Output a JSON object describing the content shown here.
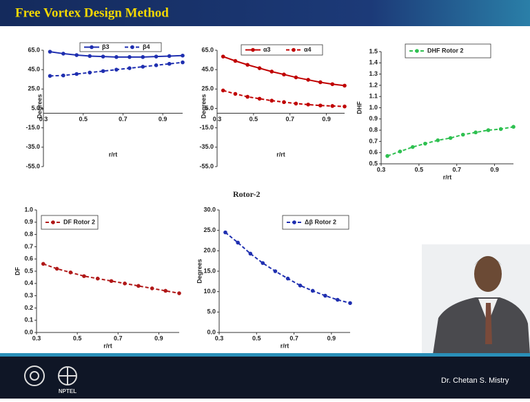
{
  "slide": {
    "title": "Free Vortex Design Method",
    "subtitle": "Rotor-2",
    "presenter": "Dr. Chetan S. Mistry",
    "logo_text": "NPTEL"
  },
  "chart_data": [
    {
      "type": "line",
      "xlabel": "r/rt",
      "ylabel": "Degrees",
      "legend": "top",
      "x_axis_at": 0,
      "x": [
        0.333,
        0.4,
        0.467,
        0.533,
        0.6,
        0.667,
        0.733,
        0.8,
        0.867,
        0.933,
        1.0
      ],
      "series": [
        {
          "name": "β3",
          "color": "#1f2fb0",
          "dash": false,
          "values": [
            63.5,
            61.5,
            60,
            59,
            58.5,
            58,
            58,
            58,
            58.5,
            59,
            59.5
          ]
        },
        {
          "name": "β4",
          "color": "#1f2fb0",
          "dash": true,
          "values": [
            38.5,
            39,
            40.5,
            42,
            43.5,
            45,
            46.5,
            48,
            49.5,
            51,
            52.5
          ]
        }
      ],
      "xlim": [
        0.3,
        1.0
      ],
      "xticks": [
        0.3,
        0.5,
        0.7,
        0.9
      ],
      "ylim": [
        -55,
        65
      ],
      "yticks": [
        {
          "value": 65,
          "label": "65.0"
        },
        {
          "value": 45,
          "label": "45.0"
        },
        {
          "value": 25,
          "label": "25.0"
        },
        {
          "value": 5,
          "label": "5.0"
        },
        {
          "value": -15,
          "label": "-15.0"
        },
        {
          "value": -35,
          "label": "-35.0"
        },
        {
          "value": -55,
          "label": "-55.0"
        }
      ]
    },
    {
      "type": "line",
      "xlabel": "r/rt",
      "ylabel": "Degrees",
      "legend": "top",
      "x_axis_at": 0,
      "x": [
        0.333,
        0.4,
        0.467,
        0.533,
        0.6,
        0.667,
        0.733,
        0.8,
        0.867,
        0.933,
        1.0
      ],
      "series": [
        {
          "name": "α3",
          "color": "#c00000",
          "dash": false,
          "values": [
            58.5,
            54,
            50,
            46.5,
            43,
            40,
            37,
            34.5,
            32,
            30,
            28.5
          ]
        },
        {
          "name": "α4",
          "color": "#c00000",
          "dash": true,
          "values": [
            23.5,
            20,
            17,
            15,
            13,
            11.5,
            10,
            9,
            8,
            7.5,
            7
          ]
        }
      ],
      "xlim": [
        0.3,
        1.0
      ],
      "xticks": [
        0.3,
        0.5,
        0.7,
        0.9
      ],
      "ylim": [
        -55,
        65
      ],
      "yticks": [
        {
          "value": 65,
          "label": "65.0"
        },
        {
          "value": 45,
          "label": "45.0"
        },
        {
          "value": 25,
          "label": "25.0"
        },
        {
          "value": 5,
          "label": "5.0"
        },
        {
          "value": -15,
          "label": "-15.0"
        },
        {
          "value": -35,
          "label": "-35.0"
        },
        {
          "value": -55,
          "label": "-55.0"
        }
      ]
    },
    {
      "type": "line",
      "xlabel": "r/rt",
      "ylabel": "DHF",
      "legend": "top",
      "x": [
        0.333,
        0.4,
        0.467,
        0.533,
        0.6,
        0.667,
        0.733,
        0.8,
        0.867,
        0.933,
        1.0
      ],
      "series": [
        {
          "name": "DHF Rotor 2",
          "color": "#2ec050",
          "dash": true,
          "values": [
            0.57,
            0.61,
            0.65,
            0.68,
            0.71,
            0.73,
            0.76,
            0.78,
            0.8,
            0.81,
            0.83
          ]
        }
      ],
      "xlim": [
        0.3,
        1.0
      ],
      "xticks": [
        0.3,
        0.5,
        0.7,
        0.9
      ],
      "ylim": [
        0.5,
        1.5
      ],
      "yticks": [
        0.5,
        0.6,
        0.7,
        0.8,
        0.9,
        {
          "value": 1,
          "label": "1.0"
        },
        1.1,
        1.2,
        1.3,
        1.4,
        1.5
      ]
    },
    {
      "type": "line",
      "xlabel": "r/rt",
      "ylabel": "DF",
      "legend": "top",
      "x": [
        0.333,
        0.4,
        0.467,
        0.533,
        0.6,
        0.667,
        0.733,
        0.8,
        0.867,
        0.933,
        1.0
      ],
      "series": [
        {
          "name": "DF Rotor 2",
          "color": "#b01818",
          "dash": true,
          "values": [
            0.56,
            0.52,
            0.49,
            0.46,
            0.44,
            0.42,
            0.4,
            0.38,
            0.36,
            0.34,
            0.32
          ]
        }
      ],
      "xlim": [
        0.3,
        1.0
      ],
      "xticks": [
        0.3,
        0.5,
        0.7,
        0.9
      ],
      "ylim": [
        0,
        1
      ],
      "yticks": [
        {
          "value": 0,
          "label": "0.0"
        },
        0.1,
        0.2,
        0.3,
        0.4,
        0.5,
        0.6,
        0.7,
        0.8,
        0.9,
        {
          "value": 1,
          "label": "1.0"
        }
      ]
    },
    {
      "type": "line",
      "xlabel": "r/rt",
      "ylabel": "Degrees",
      "legend": "top",
      "x": [
        0.333,
        0.4,
        0.467,
        0.533,
        0.6,
        0.667,
        0.733,
        0.8,
        0.867,
        0.933,
        1.0
      ],
      "series": [
        {
          "name": "Δβ Rotor 2",
          "color": "#1f2fb0",
          "dash": true,
          "values": [
            24.5,
            22,
            19.3,
            17,
            15,
            13.2,
            11.5,
            10.2,
            9,
            8,
            7.2
          ]
        }
      ],
      "xlim": [
        0.3,
        1.0
      ],
      "xticks": [
        0.3,
        0.5,
        0.7,
        0.9
      ],
      "ylim": [
        0,
        30
      ],
      "yticks": [
        {
          "value": 0,
          "label": "0.0"
        },
        {
          "value": 5,
          "label": "5.0"
        },
        {
          "value": 10,
          "label": "10.0"
        },
        {
          "value": 15,
          "label": "15.0"
        },
        {
          "value": 20,
          "label": "20.0"
        },
        {
          "value": 25,
          "label": "25.0"
        },
        {
          "value": 30,
          "label": "30.0"
        }
      ]
    }
  ]
}
